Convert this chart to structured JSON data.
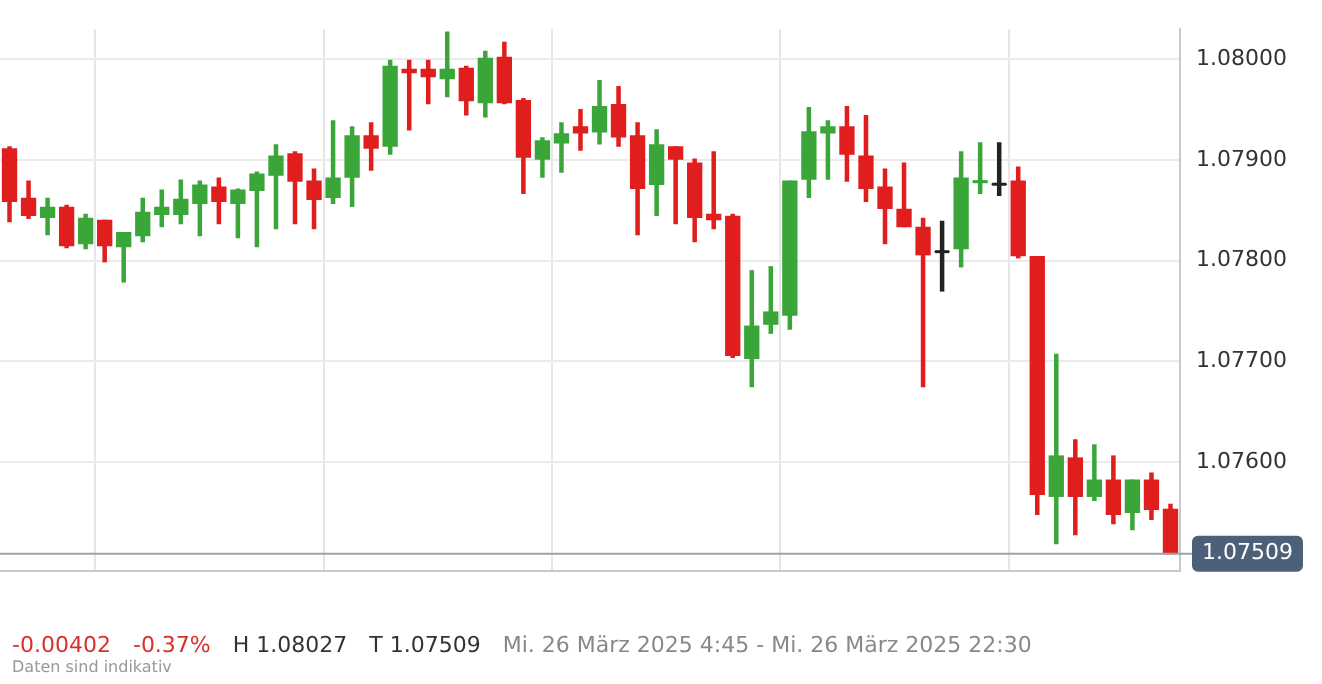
{
  "chart_data": {
    "type": "candlestick",
    "categories": [
      null,
      null,
      null,
      null,
      null,
      null,
      null,
      null,
      null,
      null,
      null,
      null,
      null,
      null,
      null,
      null,
      null,
      null,
      null,
      null,
      null,
      null,
      null,
      null,
      null,
      null,
      null,
      null,
      null,
      null,
      null,
      null,
      null,
      null,
      null,
      null,
      null,
      null,
      null,
      null,
      null,
      null,
      null,
      null,
      null,
      null,
      null,
      null,
      null,
      null,
      null,
      null,
      null,
      null,
      null,
      null,
      null,
      null,
      null,
      null,
      null,
      null
    ],
    "ohlc": [
      [
        1.07911,
        1.07913,
        1.07839,
        1.07859
      ],
      [
        1.07862,
        1.07879,
        1.07842,
        1.07845
      ],
      [
        1.07843,
        1.07862,
        1.07826,
        1.07853
      ],
      [
        1.07853,
        1.07855,
        1.07813,
        1.07815
      ],
      [
        1.07817,
        1.07846,
        1.07812,
        1.07842
      ],
      [
        1.0784,
        1.0784,
        1.07799,
        1.07815
      ],
      [
        1.07814,
        1.07828,
        1.07779,
        1.07828
      ],
      [
        1.07825,
        1.07862,
        1.07819,
        1.07848
      ],
      [
        1.07846,
        1.0787,
        1.07834,
        1.07853
      ],
      [
        1.07846,
        1.0788,
        1.07837,
        1.07861
      ],
      [
        1.07857,
        1.07879,
        1.07825,
        1.07875
      ],
      [
        1.07873,
        1.07882,
        1.07837,
        1.07859
      ],
      [
        1.07857,
        1.07871,
        1.07823,
        1.0787
      ],
      [
        1.0787,
        1.07888,
        1.07814,
        1.07886
      ],
      [
        1.07885,
        1.07915,
        1.07832,
        1.07904
      ],
      [
        1.07906,
        1.07908,
        1.07837,
        1.07879
      ],
      [
        1.07879,
        1.07891,
        1.07832,
        1.07861
      ],
      [
        1.07863,
        1.07939,
        1.07857,
        1.07882
      ],
      [
        1.07883,
        1.07933,
        1.07854,
        1.07924
      ],
      [
        1.07924,
        1.07937,
        1.0789,
        1.07912
      ],
      [
        1.07914,
        1.07999,
        1.07906,
        1.07993
      ],
      [
        1.0799,
        1.07999,
        1.0793,
        1.07987
      ],
      [
        1.0799,
        1.07999,
        1.07956,
        1.07983
      ],
      [
        1.07981,
        1.08027,
        1.07963,
        1.0799
      ],
      [
        1.07991,
        1.07993,
        1.07945,
        1.07959
      ],
      [
        1.07957,
        1.08008,
        1.07943,
        1.08001
      ],
      [
        1.08002,
        1.08017,
        1.07956,
        1.07957
      ],
      [
        1.07959,
        1.07961,
        1.07867,
        1.07903
      ],
      [
        1.07901,
        1.07922,
        1.07883,
        1.07919
      ],
      [
        1.07917,
        1.07937,
        1.07888,
        1.07926
      ],
      [
        1.07933,
        1.0795,
        1.0791,
        1.07927
      ],
      [
        1.07928,
        1.07979,
        1.07916,
        1.07953
      ],
      [
        1.07955,
        1.07973,
        1.07914,
        1.07923
      ],
      [
        1.07924,
        1.07937,
        1.07826,
        1.07872
      ],
      [
        1.07876,
        1.0793,
        1.07845,
        1.07915
      ],
      [
        1.07913,
        1.07913,
        1.07837,
        1.07901
      ],
      [
        1.07897,
        1.07901,
        1.07819,
        1.07843
      ],
      [
        1.07846,
        1.07908,
        1.07832,
        1.07841
      ],
      [
        1.07844,
        1.07846,
        1.07704,
        1.07706
      ],
      [
        1.07703,
        1.0779,
        1.07675,
        1.07735
      ],
      [
        1.07737,
        1.07794,
        1.07728,
        1.07749
      ],
      [
        1.07746,
        1.07879,
        1.07732,
        1.07879
      ],
      [
        1.07881,
        1.07952,
        1.07863,
        1.07928
      ],
      [
        1.07927,
        1.07939,
        1.07881,
        1.07933
      ],
      [
        1.07933,
        1.07953,
        1.07879,
        1.07906
      ],
      [
        1.07904,
        1.07944,
        1.07859,
        1.07872
      ],
      [
        1.07873,
        1.07891,
        1.07817,
        1.07852
      ],
      [
        1.07851,
        1.07897,
        1.07834,
        1.07834
      ],
      [
        1.07833,
        1.07842,
        1.07675,
        1.07806
      ],
      [
        1.07809,
        1.07839,
        1.0777,
        1.07809
      ],
      [
        1.07812,
        1.07908,
        1.07794,
        1.07882
      ],
      [
        1.07878,
        1.07917,
        1.07867,
        1.07879
      ],
      [
        1.07876,
        1.07917,
        1.07865,
        1.07876
      ],
      [
        1.07879,
        1.07893,
        1.07803,
        1.07805
      ],
      [
        1.07804,
        1.07804,
        1.07548,
        1.07568
      ],
      [
        1.07566,
        1.07707,
        1.07519,
        1.07606
      ],
      [
        1.07604,
        1.07622,
        1.07528,
        1.07566
      ],
      [
        1.07566,
        1.07617,
        1.07562,
        1.07582
      ],
      [
        1.07582,
        1.07606,
        1.07539,
        1.07548
      ],
      [
        1.0755,
        1.07582,
        1.07533,
        1.07582
      ],
      [
        1.07582,
        1.07589,
        1.07543,
        1.07553
      ],
      [
        1.07553,
        1.07558,
        1.07509,
        1.07509
      ]
    ],
    "colors": [
      "#e01e1e",
      "#e01e1e",
      "#3aa63a",
      "#e01e1e",
      "#3aa63a",
      "#e01e1e",
      "#3aa63a",
      "#3aa63a",
      "#3aa63a",
      "#3aa63a",
      "#3aa63a",
      "#e01e1e",
      "#3aa63a",
      "#3aa63a",
      "#3aa63a",
      "#e01e1e",
      "#e01e1e",
      "#3aa63a",
      "#3aa63a",
      "#e01e1e",
      "#3aa63a",
      "#e01e1e",
      "#e01e1e",
      "#3aa63a",
      "#e01e1e",
      "#3aa63a",
      "#e01e1e",
      "#e01e1e",
      "#3aa63a",
      "#3aa63a",
      "#e01e1e",
      "#3aa63a",
      "#e01e1e",
      "#e01e1e",
      "#3aa63a",
      "#e01e1e",
      "#e01e1e",
      "#e01e1e",
      "#e01e1e",
      "#3aa63a",
      "#3aa63a",
      "#3aa63a",
      "#3aa63a",
      "#3aa63a",
      "#e01e1e",
      "#e01e1e",
      "#e01e1e",
      "#e01e1e",
      "#e01e1e",
      "#222222",
      "#3aa63a",
      "#3aa63a",
      "#222222",
      "#e01e1e",
      "#e01e1e",
      "#3aa63a",
      "#e01e1e",
      "#3aa63a",
      "#e01e1e",
      "#3aa63a",
      "#e01e1e",
      "#e01e1e"
    ],
    "ylim": [
      1.07492,
      1.0803
    ],
    "yticks": [
      {
        "value": 1.076,
        "label": "1.07600"
      },
      {
        "value": 1.077,
        "label": "1.07700"
      },
      {
        "value": 1.078,
        "label": "1.07800"
      },
      {
        "value": 1.079,
        "label": "1.07900"
      },
      {
        "value": 1.08,
        "label": "1.08000"
      }
    ],
    "grid": true,
    "tick_labels": "y",
    "legend": false,
    "ref_lines": [
      {
        "axis": "y",
        "value": 1.07509,
        "label": "1.07509",
        "color": "#9aa3ad"
      }
    ],
    "annotations": [
      "-0.00402",
      "-0.37%",
      "H 1.08027",
      "T 1.07509",
      "Mi. 26 März 2025 4:45 - Mi. 26 März 2025 22:30",
      "Daten sind indikativ"
    ]
  }
}
